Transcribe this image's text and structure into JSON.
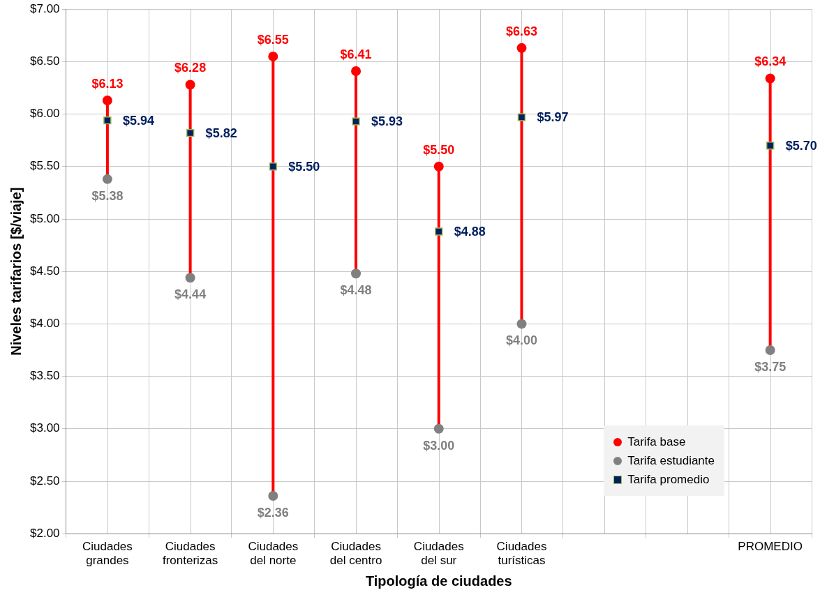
{
  "chart_data": {
    "type": "scatter",
    "xlabel": "Tipología de ciudades",
    "ylabel": "Niveles tarifarios [$/viaje]",
    "categories": [
      "Ciudades grandes",
      "Ciudades fronterizas",
      "Ciudades del norte",
      "Ciudades del centro",
      "Ciudades del sur",
      "Ciudades turísticas",
      null,
      null,
      "PROMEDIO"
    ],
    "ylim": [
      2,
      7
    ],
    "yticks": [
      {
        "value": 2,
        "label": "$2.00"
      },
      {
        "value": 2.5,
        "label": "$2.50"
      },
      {
        "value": 3,
        "label": "$3.00"
      },
      {
        "value": 3.5,
        "label": "$3.50"
      },
      {
        "value": 4,
        "label": "$4.00"
      },
      {
        "value": 4.5,
        "label": "$4.50"
      },
      {
        "value": 5,
        "label": "$5.00"
      },
      {
        "value": 5.5,
        "label": "$5.50"
      },
      {
        "value": 6,
        "label": "$6.00"
      },
      {
        "value": 6.5,
        "label": "$6.50"
      },
      {
        "value": 7,
        "label": "$7.00"
      }
    ],
    "grid": true,
    "legend": "bottom right",
    "series": [
      {
        "name": "Tarifa base",
        "color": "#ff0000",
        "marker": "circle",
        "values": [
          6.13,
          6.28,
          6.55,
          6.41,
          5.5,
          6.63,
          null,
          null,
          6.34
        ],
        "value_labels": [
          "$6.13",
          "$6.28",
          "$6.55",
          "$6.41",
          "$5.50",
          "$6.63",
          null,
          null,
          "$6.34"
        ]
      },
      {
        "name": "Tarifa estudiante",
        "color": "#808080",
        "marker": "circle",
        "values": [
          5.38,
          4.44,
          2.36,
          4.48,
          3.0,
          4.0,
          null,
          null,
          3.75
        ],
        "value_labels": [
          "$5.38",
          "$4.44",
          "$2.36",
          "$4.48",
          "$3.00",
          "$4.00",
          null,
          null,
          "$3.75"
        ]
      },
      {
        "name": "Tarifa promedio",
        "color": "#002060",
        "marker": "square",
        "values": [
          5.94,
          5.82,
          5.5,
          5.93,
          4.88,
          5.97,
          null,
          null,
          5.7
        ],
        "value_labels": [
          "$5.94",
          "$5.82",
          "$5.50",
          "$5.93",
          "$4.88",
          "$5.97",
          null,
          null,
          "$5.70"
        ]
      }
    ]
  }
}
